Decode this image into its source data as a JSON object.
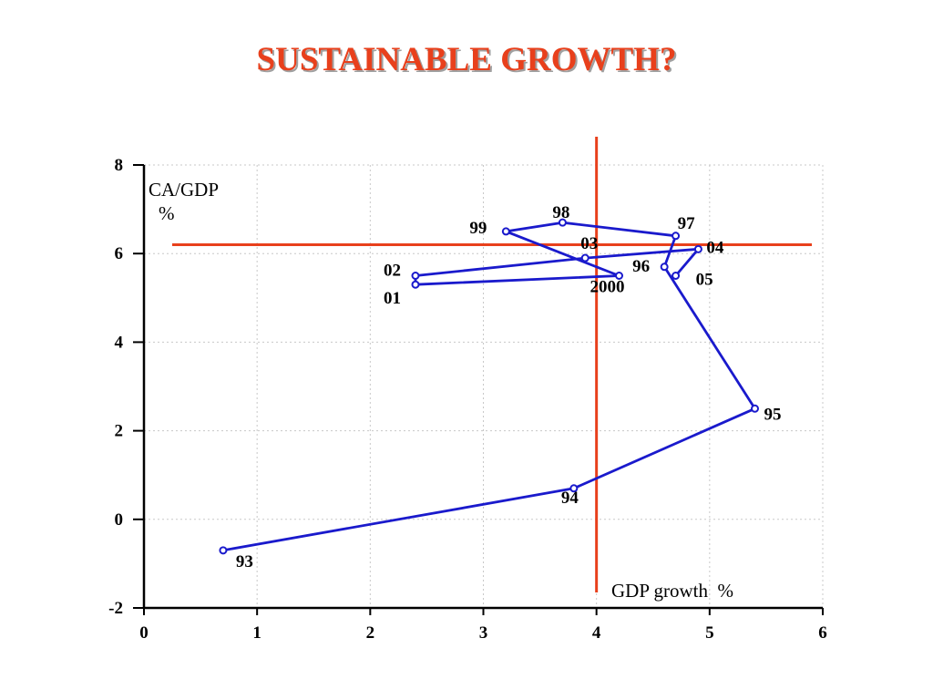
{
  "slide": {
    "title": "SUSTAINABLE GROWTH?"
  },
  "colors": {
    "title": "#e8401c",
    "series": "#1a1acc",
    "reference": "#e8401c",
    "axis": "#000000",
    "grid": "#c8c8c8"
  },
  "chart_data": {
    "type": "line",
    "xlabel": "GDP growth  %",
    "ylabel": "CA/GDP",
    "ylabel_unit": "%",
    "xlim": [
      0,
      6
    ],
    "ylim": [
      -2,
      8
    ],
    "xticks": [
      "0",
      "1",
      "2",
      "3",
      "4",
      "5",
      "6"
    ],
    "yticks": [
      "-2",
      "0",
      "2",
      "4",
      "6",
      "8"
    ],
    "grid": true,
    "reference_lines": {
      "vertical_x": 4,
      "horizontal_y": 6.2
    },
    "series": [
      {
        "points": [
          {
            "label": "93",
            "x": 0.7,
            "y": -0.7
          },
          {
            "label": "94",
            "x": 3.8,
            "y": 0.7
          },
          {
            "label": "95",
            "x": 5.4,
            "y": 2.5
          },
          {
            "label": "96",
            "x": 4.6,
            "y": 5.7
          },
          {
            "label": "97",
            "x": 4.7,
            "y": 6.4
          },
          {
            "label": "98",
            "x": 3.7,
            "y": 6.7
          },
          {
            "label": "99",
            "x": 3.2,
            "y": 6.5
          },
          {
            "label": "2000",
            "x": 4.2,
            "y": 5.5
          },
          {
            "label": "01",
            "x": 2.4,
            "y": 5.3
          },
          {
            "label": "02",
            "x": 2.4,
            "y": 5.5
          },
          {
            "label": "03",
            "x": 3.9,
            "y": 5.9
          },
          {
            "label": "04",
            "x": 4.9,
            "y": 6.1
          },
          {
            "label": "05",
            "x": 4.7,
            "y": 5.5
          }
        ]
      }
    ]
  }
}
